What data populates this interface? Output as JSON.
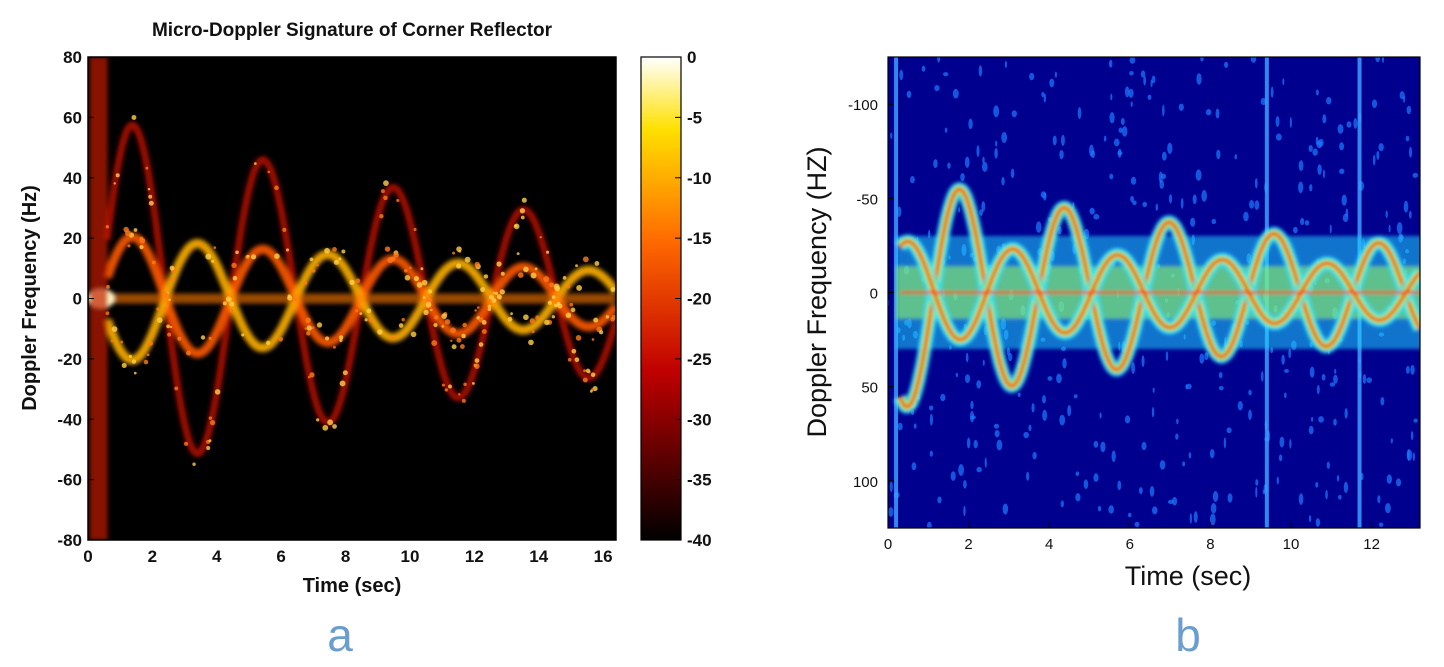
{
  "figure": {
    "panel_labels": [
      "a",
      "b"
    ],
    "colors": {
      "panel_letter": "#6b9dcd",
      "jet_background": "#00008f"
    }
  },
  "chart_data": [
    {
      "type": "heatmap",
      "panel": "a",
      "title": "Micro-Doppler Signature of Corner Reflector",
      "xlabel": "Time (sec)",
      "ylabel": "Doppler Frequency (Hz)",
      "xlim": [
        0,
        16.4
      ],
      "ylim": [
        -80,
        80
      ],
      "xticks": [
        "0",
        "2",
        "4",
        "6",
        "8",
        "10",
        "12",
        "14",
        "16"
      ],
      "yticks": [
        "80",
        "60",
        "40",
        "20",
        "0",
        "-20",
        "-40",
        "-60",
        "-80"
      ],
      "colormap": "hot",
      "colorbar": {
        "range": [
          -40,
          0
        ],
        "ticks": [
          "0",
          "-5",
          "-10",
          "-15",
          "-20",
          "-25",
          "-30",
          "-35",
          "-40"
        ]
      },
      "signature": {
        "description_free": true,
        "components": [
          {
            "amplitude": 62,
            "period": 4.05,
            "phase": -0.6
          },
          {
            "amplitude": 22,
            "period": 4.05,
            "phase": -0.6
          },
          {
            "amplitude": 22,
            "period": 4.05,
            "phase": 2.55
          }
        ],
        "decay": 0.055,
        "time_range": [
          0.6,
          16.4
        ]
      }
    },
    {
      "type": "heatmap",
      "panel": "b",
      "title": "",
      "xlabel": "Time (sec)",
      "ylabel": "Doppler Frequency (HZ)",
      "xlim": [
        0,
        13.2
      ],
      "ylim": [
        125,
        -125
      ],
      "xticks": [
        "0",
        "2",
        "4",
        "6",
        "8",
        "10",
        "12"
      ],
      "yticks": [
        "-100",
        "-50",
        "0",
        "50",
        "100"
      ],
      "colormap": "jet",
      "signature": {
        "components": [
          {
            "amplitude": 55,
            "period": 2.6,
            "phase": 0.4
          },
          {
            "amplitude": 20,
            "period": 2.6,
            "phase": 3.5
          }
        ],
        "decay": 0.09,
        "time_range": [
          0.3,
          13.2
        ],
        "vertical_lines_x": [
          0.2,
          9.4,
          11.7
        ]
      }
    }
  ]
}
